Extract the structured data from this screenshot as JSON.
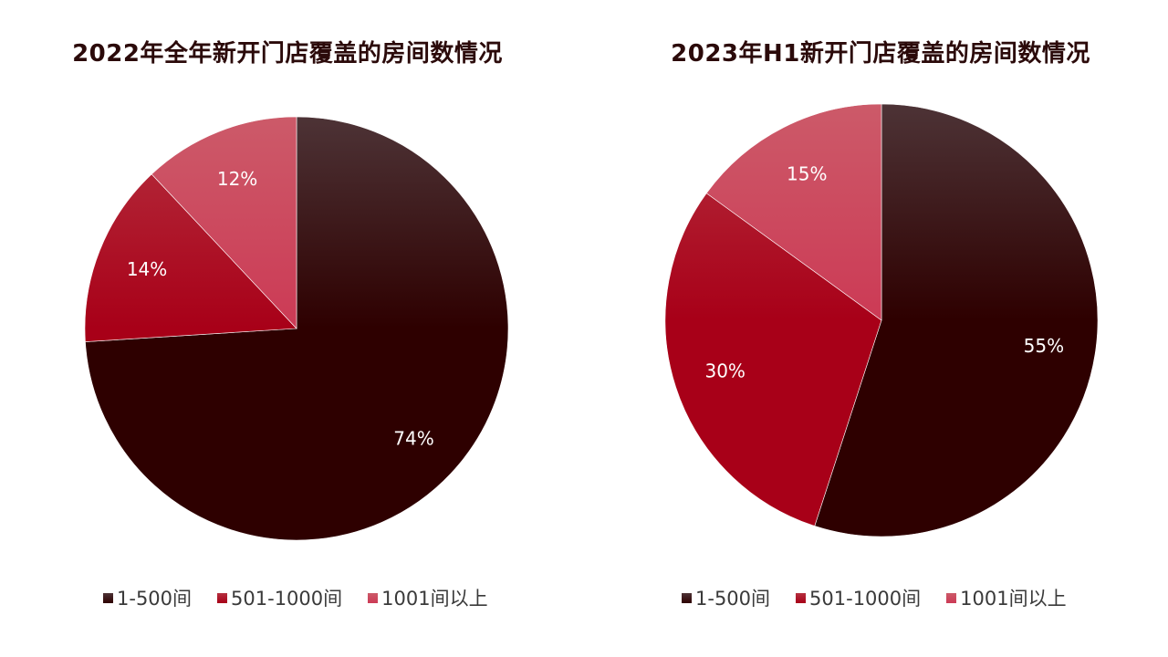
{
  "colors": {
    "title": "#2b0a0a",
    "label": "#ffffff",
    "legend_text": "#3a3a3a"
  },
  "chart_data": [
    {
      "type": "pie",
      "title": "2022年全年新开门店覆盖的房间数情况",
      "categories": [
        "1-500间",
        "501-1000间",
        "1001间以上"
      ],
      "values": [
        74,
        14,
        12
      ],
      "labels": [
        "74%",
        "14%",
        "12%"
      ],
      "colors": [
        "#2e0000",
        "#a80018",
        "#cc3a55"
      ],
      "gradient_tops": [
        "#4d3336",
        "#b5303f",
        "#cc5a69"
      ],
      "start_angle": "12 o'clock",
      "direction": "clockwise",
      "legend_position": "bottom"
    },
    {
      "type": "pie",
      "title": "2023年H1新开门店覆盖的房间数情况",
      "categories": [
        "1-500间",
        "501-1000间",
        "1001间以上"
      ],
      "values": [
        55,
        30,
        15
      ],
      "labels": [
        "55%",
        "30%",
        "15%"
      ],
      "colors": [
        "#2e0000",
        "#a80018",
        "#cc3a55"
      ],
      "gradient_tops": [
        "#4d3336",
        "#b5303f",
        "#cc5a69"
      ],
      "start_angle": "12 o'clock",
      "direction": "clockwise",
      "legend_position": "bottom"
    }
  ]
}
